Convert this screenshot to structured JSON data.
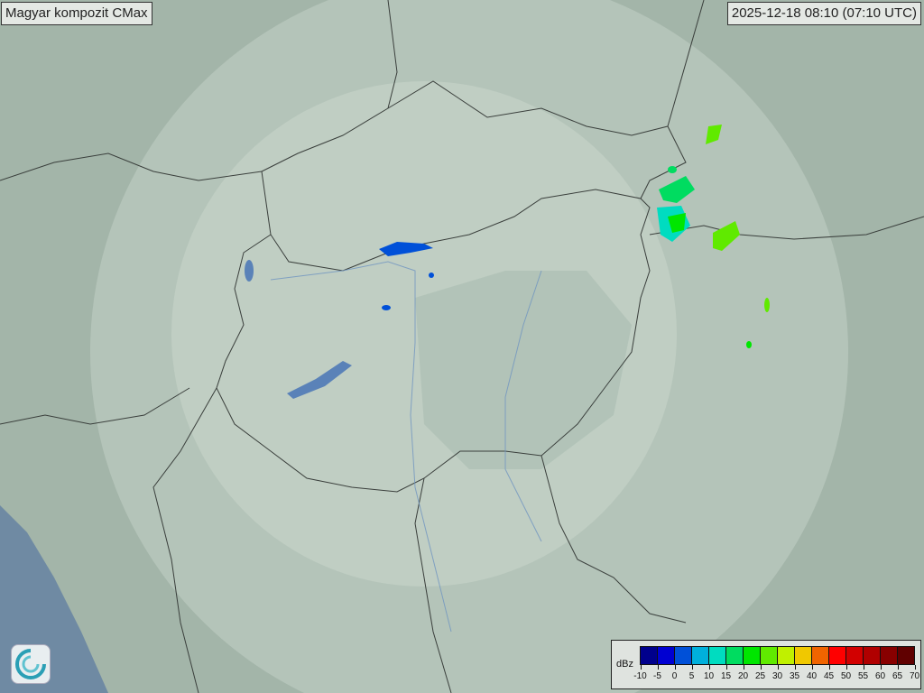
{
  "title": "Magyar kompozit  CMax",
  "timestamp": "2025-12-18 08:10 (07:10 UTC)",
  "legend": {
    "unit": "dBz",
    "ticks": [
      "-10",
      "-5",
      "0",
      "5",
      "10",
      "15",
      "20",
      "25",
      "30",
      "35",
      "40",
      "45",
      "50",
      "55",
      "60",
      "65",
      "70"
    ],
    "colors": [
      "#00008c",
      "#0000d2",
      "#0050d8",
      "#00b0dc",
      "#00dcc0",
      "#00dc60",
      "#00e600",
      "#60ea00",
      "#c0f000",
      "#f0c800",
      "#f06400",
      "#ff0000",
      "#d20000",
      "#b00000",
      "#880000",
      "#600000"
    ]
  },
  "map": {
    "background": "#9fb2a6",
    "coverage_color": "#c9d6cc",
    "logo_icon": "radar-swirl-logo"
  }
}
